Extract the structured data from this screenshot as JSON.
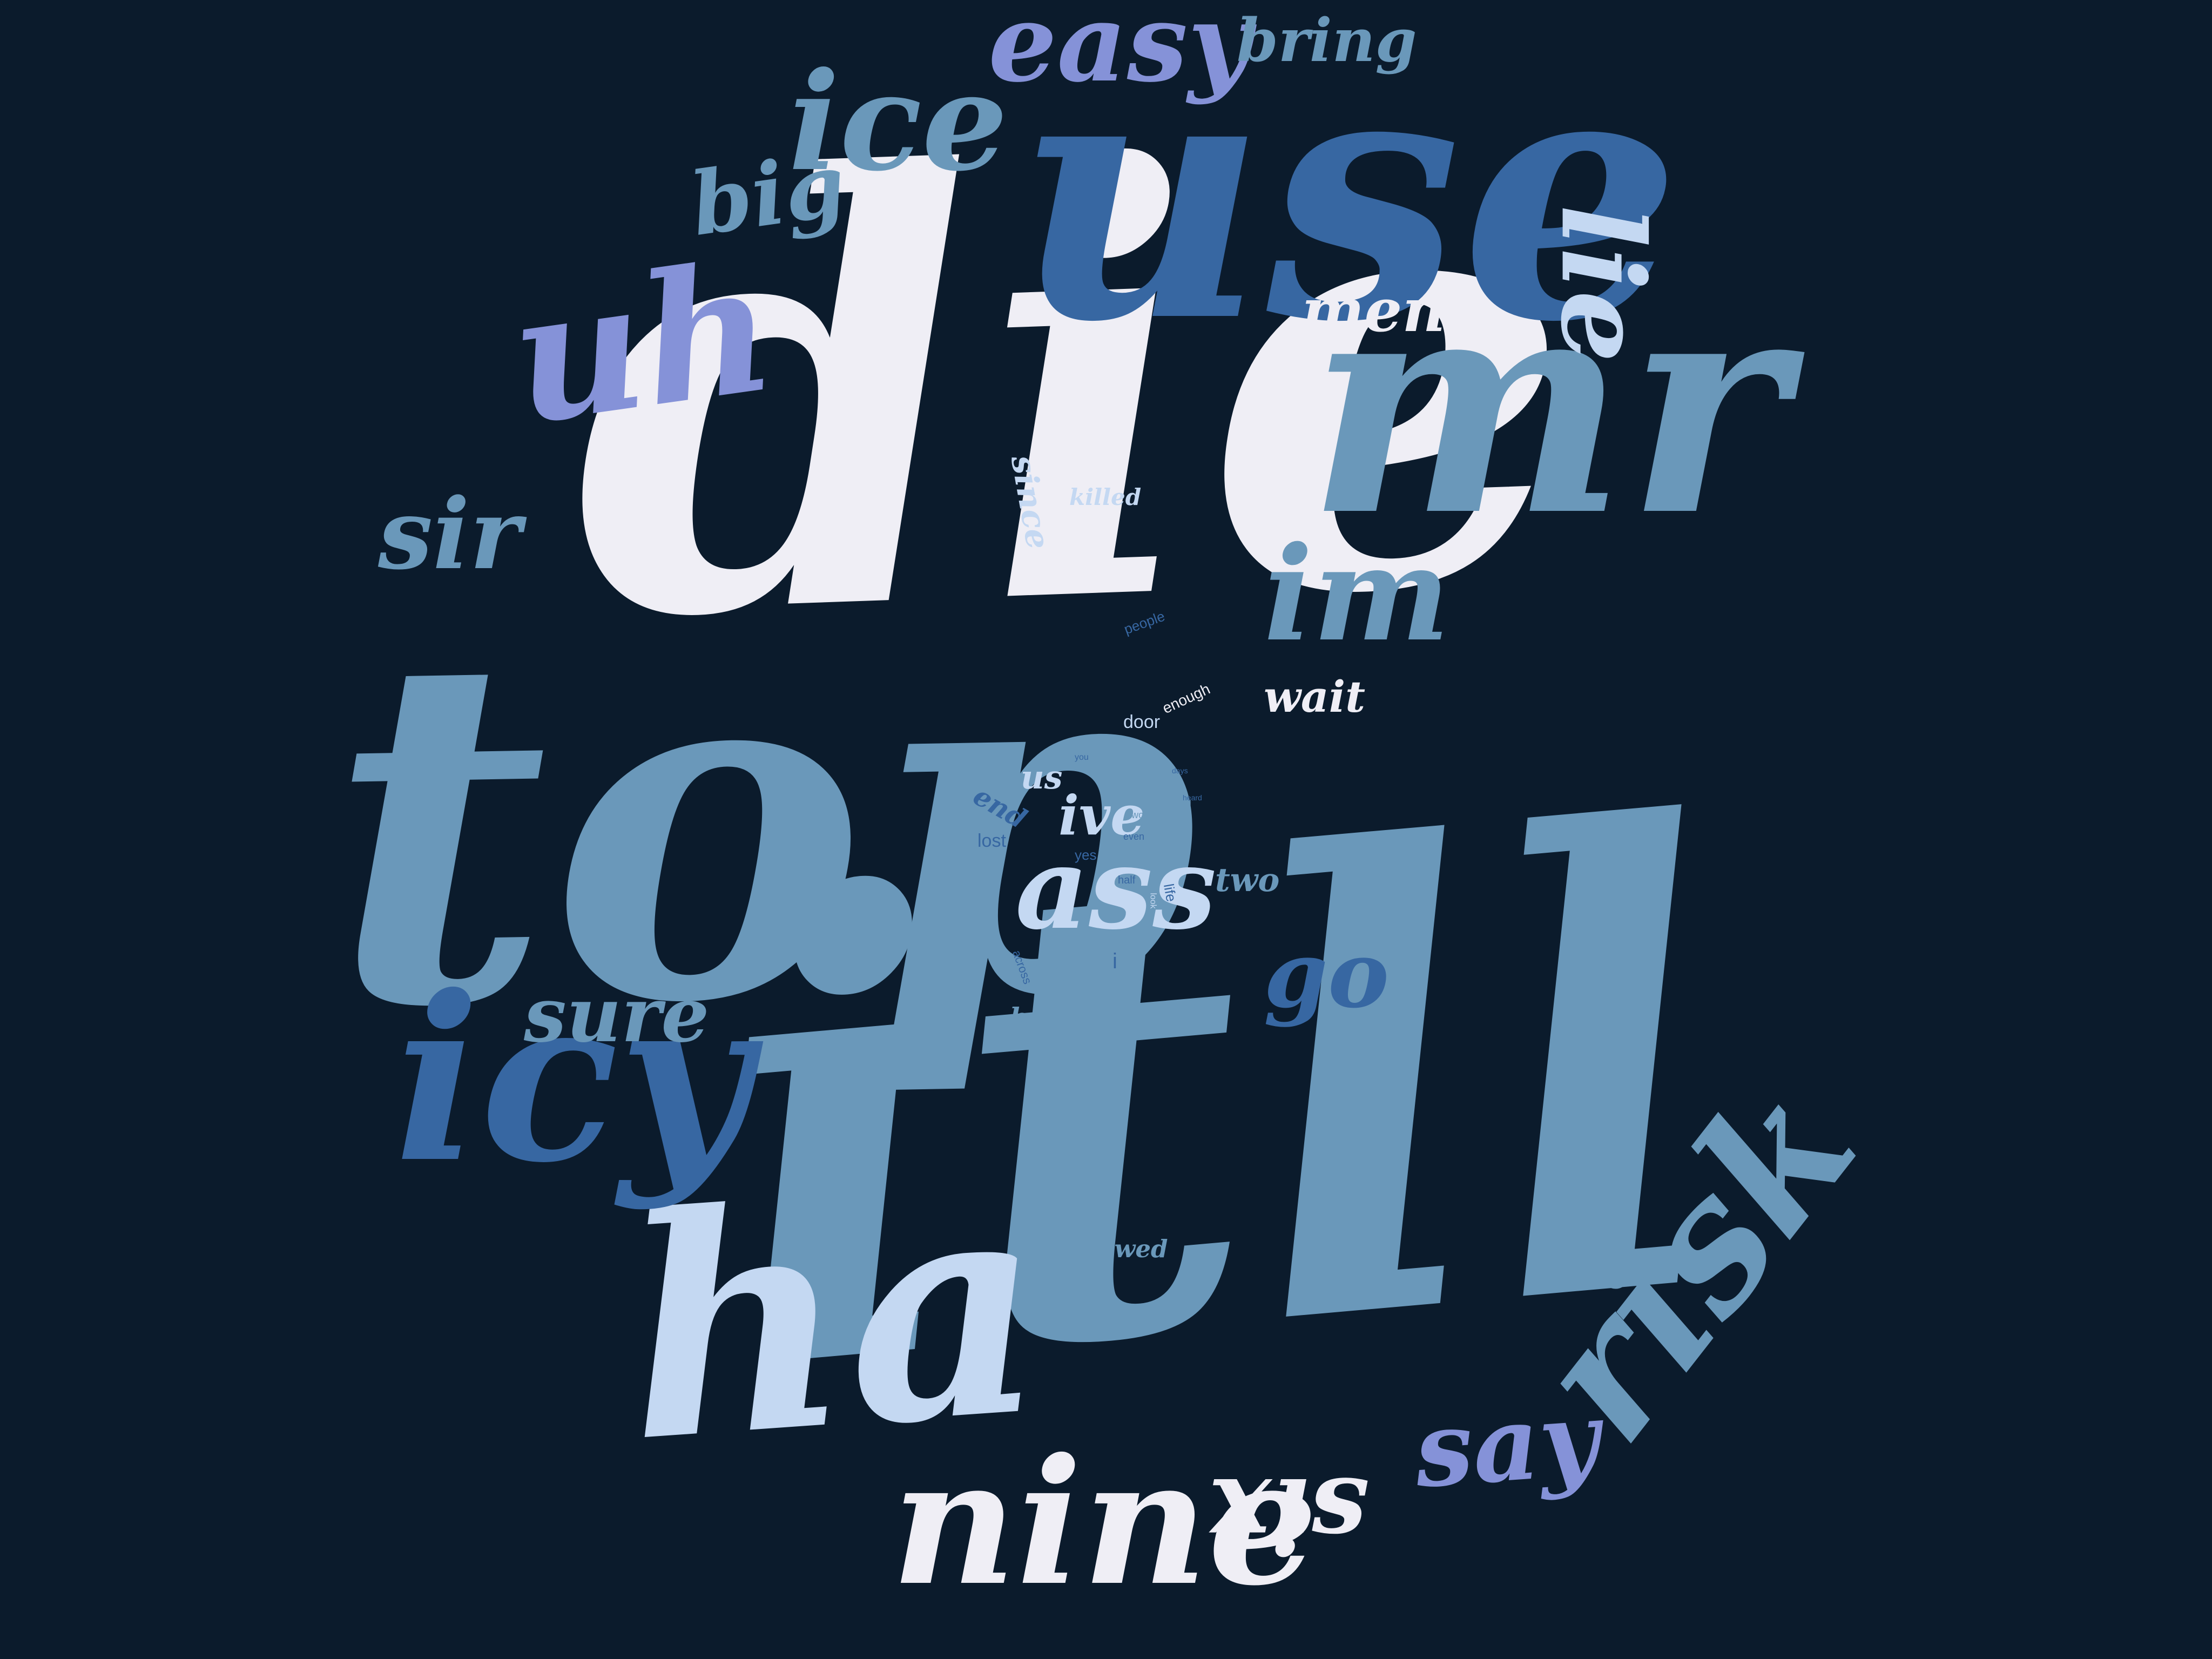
{
  "palette": {
    "background": "#0b1b2c",
    "white": "#efeef5",
    "steel": "#6a98ba",
    "navy_blue": "#3767a2",
    "pale_blue": "#c4d8f2",
    "periwinkle": "#8592d8"
  },
  "words": [
    {
      "text": "die",
      "color": "white"
    },
    {
      "text": "top",
      "color": "steel"
    },
    {
      "text": "itll",
      "color": "steel"
    },
    {
      "text": "use",
      "color": "navy_blue"
    },
    {
      "text": "mr",
      "color": "steel"
    },
    {
      "text": "ha",
      "color": "pale_blue"
    },
    {
      "text": "icy",
      "color": "navy_blue"
    },
    {
      "text": "nine",
      "color": "white"
    },
    {
      "text": "risk",
      "color": "steel"
    },
    {
      "text": "uh",
      "color": "periwinkle"
    },
    {
      "text": "ice",
      "color": "steel"
    },
    {
      "text": "im",
      "color": "steel"
    },
    {
      "text": "lie",
      "color": "pale_blue"
    },
    {
      "text": "easy",
      "color": "periwinkle"
    },
    {
      "text": "ass",
      "color": "pale_blue"
    },
    {
      "text": "six",
      "color": "white"
    },
    {
      "text": "say",
      "color": "periwinkle"
    },
    {
      "text": "sir",
      "color": "steel"
    },
    {
      "text": "big",
      "color": "steel"
    },
    {
      "text": "bring",
      "color": "steel"
    },
    {
      "text": "men",
      "color": "white"
    },
    {
      "text": "sure",
      "color": "steel"
    },
    {
      "text": "go",
      "color": "navy_blue"
    },
    {
      "text": "wait",
      "color": "white"
    },
    {
      "text": "ive",
      "color": "pale_blue"
    },
    {
      "text": "two",
      "color": "steel"
    },
    {
      "text": "took",
      "color": "steel"
    },
    {
      "text": "back",
      "color": "steel"
    },
    {
      "text": "since",
      "color": "pale_blue"
    },
    {
      "text": "killed",
      "color": "pale_blue"
    },
    {
      "text": "followed",
      "color": "steel"
    },
    {
      "text": "us",
      "color": "pale_blue"
    },
    {
      "text": "end",
      "color": "navy_blue"
    },
    {
      "text": "lost",
      "color": "navy_blue"
    },
    {
      "text": "door",
      "color": "pale_blue"
    },
    {
      "text": "enough",
      "color": "white"
    },
    {
      "text": "people",
      "color": "navy_blue"
    },
    {
      "text": "else",
      "color": "steel"
    },
    {
      "text": "life",
      "color": "navy_blue"
    },
    {
      "text": "yes",
      "color": "navy_blue"
    },
    {
      "text": "half",
      "color": "navy_blue"
    },
    {
      "text": "across",
      "color": "navy_blue"
    },
    {
      "text": "even",
      "color": "navy_blue"
    },
    {
      "text": "need",
      "color": "steel"
    },
    {
      "text": "days",
      "color": "navy_blue"
    },
    {
      "text": "two",
      "color": "steel"
    },
    {
      "text": "you",
      "color": "navy_blue"
    },
    {
      "text": "look",
      "color": "pale_blue"
    },
    {
      "text": "heard",
      "color": "navy_blue"
    },
    {
      "text": "i",
      "color": "navy_blue"
    }
  ]
}
